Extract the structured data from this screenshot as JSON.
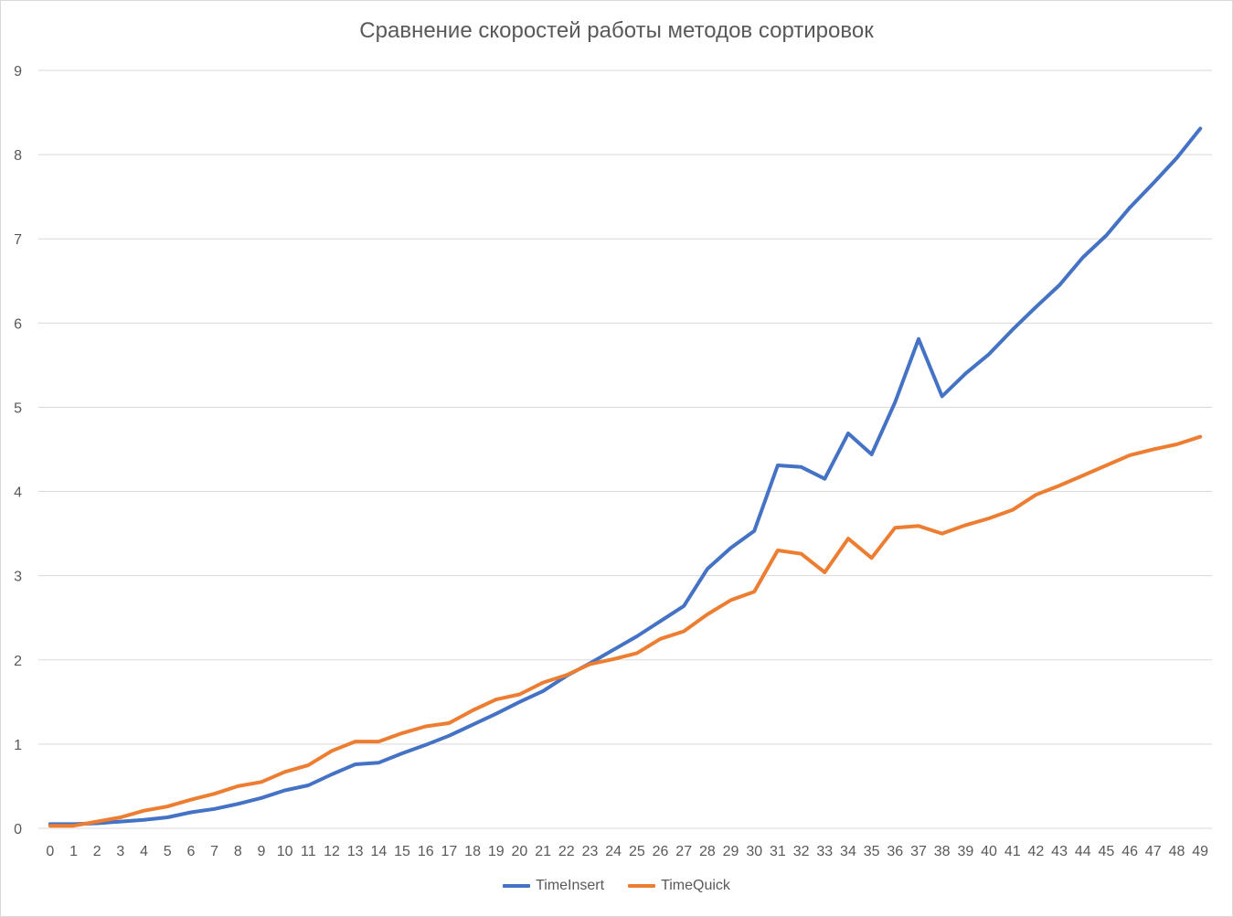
{
  "chart_data": {
    "type": "line",
    "title": "Сравнение скоростей работы методов сортировок",
    "xlabel": "",
    "ylabel": "",
    "x": [
      0,
      1,
      2,
      3,
      4,
      5,
      6,
      7,
      8,
      9,
      10,
      11,
      12,
      13,
      14,
      15,
      16,
      17,
      18,
      19,
      20,
      21,
      22,
      23,
      24,
      25,
      26,
      27,
      28,
      29,
      30,
      31,
      32,
      33,
      34,
      35,
      36,
      37,
      38,
      39,
      40,
      41,
      42,
      43,
      44,
      45,
      46,
      47,
      48,
      49
    ],
    "ylim": [
      0,
      9
    ],
    "yticks": [
      0,
      1,
      2,
      3,
      4,
      5,
      6,
      7,
      8,
      9
    ],
    "grid": true,
    "legend_position": "bottom",
    "series": [
      {
        "name": "TimeInsert",
        "color": "#4472c4",
        "values": [
          0.05,
          0.05,
          0.06,
          0.08,
          0.1,
          0.13,
          0.19,
          0.23,
          0.29,
          0.36,
          0.45,
          0.51,
          0.64,
          0.76,
          0.78,
          0.89,
          0.99,
          1.1,
          1.23,
          1.36,
          1.5,
          1.63,
          1.81,
          1.96,
          2.12,
          2.28,
          2.46,
          2.64,
          3.08,
          3.33,
          3.53,
          4.31,
          4.29,
          4.15,
          4.69,
          4.44,
          5.06,
          5.81,
          5.13,
          5.4,
          5.63,
          5.92,
          6.19,
          6.45,
          6.78,
          7.04,
          7.37,
          7.66,
          7.96,
          8.31
        ]
      },
      {
        "name": "TimeQuick",
        "color": "#ed7d31",
        "values": [
          0.03,
          0.03,
          0.08,
          0.13,
          0.21,
          0.26,
          0.34,
          0.41,
          0.5,
          0.55,
          0.67,
          0.75,
          0.92,
          1.03,
          1.03,
          1.13,
          1.21,
          1.25,
          1.4,
          1.53,
          1.59,
          1.73,
          1.82,
          1.95,
          2.01,
          2.08,
          2.25,
          2.34,
          2.54,
          2.71,
          2.81,
          3.3,
          3.26,
          3.04,
          3.44,
          3.21,
          3.57,
          3.59,
          3.5,
          3.6,
          3.68,
          3.78,
          3.96,
          4.07,
          4.19,
          4.31,
          4.43,
          4.5,
          4.56,
          4.65
        ]
      }
    ]
  }
}
